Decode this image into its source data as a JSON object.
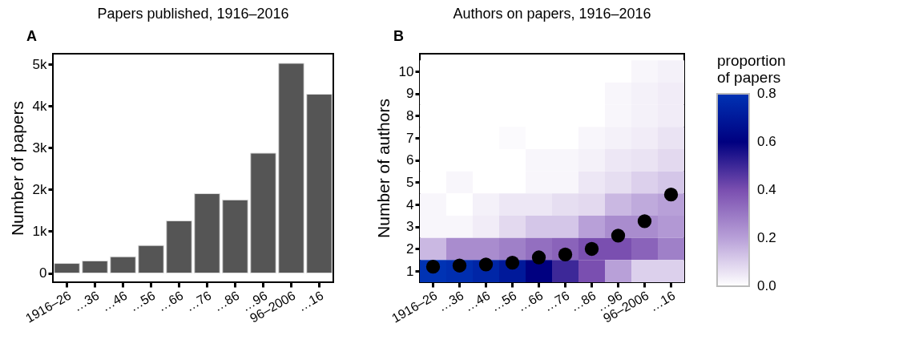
{
  "chart_data": [
    {
      "type": "bar",
      "title": "Papers published, 1916–2016",
      "ylabel": "Number of papers",
      "annotations": [
        "A"
      ],
      "categories": [
        "1916–26",
        "…36",
        "…46",
        "…56",
        "…66",
        "…76",
        "…86",
        "…96",
        "96–2006",
        "…16"
      ],
      "values": [
        230,
        290,
        390,
        660,
        1250,
        1900,
        1750,
        2870,
        5020,
        4280
      ],
      "color": "#555555",
      "ylim": [
        -220,
        5250
      ],
      "yticks": [
        0,
        {
          "value": 1000,
          "label": "1k"
        },
        {
          "value": 2000,
          "label": "2k"
        },
        {
          "value": 3000,
          "label": "3k"
        },
        {
          "value": 4000,
          "label": "4k"
        },
        {
          "value": 5000,
          "label": "5k"
        }
      ],
      "grid": false
    },
    {
      "type": "heatmap",
      "title": "Authors on papers, 1916–2016",
      "ylabel": "Number of authors",
      "legend_title": "proportion of papers",
      "annotations": [
        "B"
      ],
      "categories": [
        "1916–26",
        "…36",
        "…46",
        "…56",
        "…66",
        "…76",
        "…86",
        "…96",
        "96–2006",
        "…16"
      ],
      "ylim": [
        0.5,
        10.8
      ],
      "yticks": [
        1,
        2,
        3,
        4,
        5,
        6,
        7,
        8,
        9,
        10
      ],
      "cells": [
        [
          0,
          0,
          0,
          0,
          0,
          0,
          0,
          0,
          0.02,
          0.03
        ],
        [
          0,
          0,
          0,
          0,
          0,
          0,
          0,
          0.02,
          0.03,
          0.04
        ],
        [
          0,
          0,
          0,
          0,
          0,
          0,
          0,
          0.02,
          0.03,
          0.04
        ],
        [
          0,
          0,
          0,
          0.01,
          0,
          0,
          0.02,
          0.03,
          0.04,
          0.06
        ],
        [
          0,
          0,
          0,
          0,
          0.02,
          0.02,
          0.03,
          0.05,
          0.06,
          0.08
        ],
        [
          0,
          0.02,
          0,
          0,
          0.02,
          0.02,
          0.05,
          0.07,
          0.1,
          0.12
        ],
        [
          0.02,
          0,
          0.03,
          0.05,
          0.05,
          0.07,
          0.08,
          0.15,
          0.18,
          0.2
        ],
        [
          0.02,
          0.02,
          0.04,
          0.08,
          0.12,
          0.12,
          0.2,
          0.25,
          0.25,
          0.22
        ],
        [
          0.15,
          0.25,
          0.25,
          0.28,
          0.32,
          0.35,
          0.4,
          0.4,
          0.35,
          0.28
        ],
        [
          0.8,
          0.78,
          0.75,
          0.7,
          0.6,
          0.5,
          0.4,
          0.2,
          0.1,
          0.1
        ]
      ],
      "clim": [
        0,
        0.8
      ],
      "cticks": [
        {
          "value": 0,
          "label": "0.0"
        },
        0.2,
        0.4,
        0.6,
        0.8
      ],
      "series": [
        {
          "type": "scatter",
          "color": "#000000",
          "marker": "circle",
          "values": [
            1.2,
            1.25,
            1.3,
            1.38,
            1.62,
            1.75,
            2.0,
            2.6,
            3.25,
            4.45
          ]
        }
      ],
      "grid": false
    }
  ]
}
